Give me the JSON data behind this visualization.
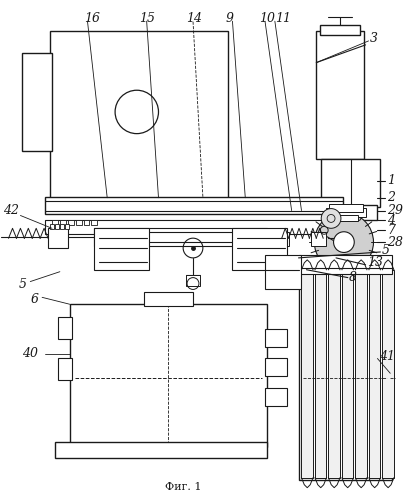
{
  "title": "Фиг. 1",
  "bg_color": "#ffffff",
  "lc": "#1a1a1a",
  "lw": 0.8,
  "fig_width": 4.06,
  "fig_height": 5.0,
  "dpi": 100
}
